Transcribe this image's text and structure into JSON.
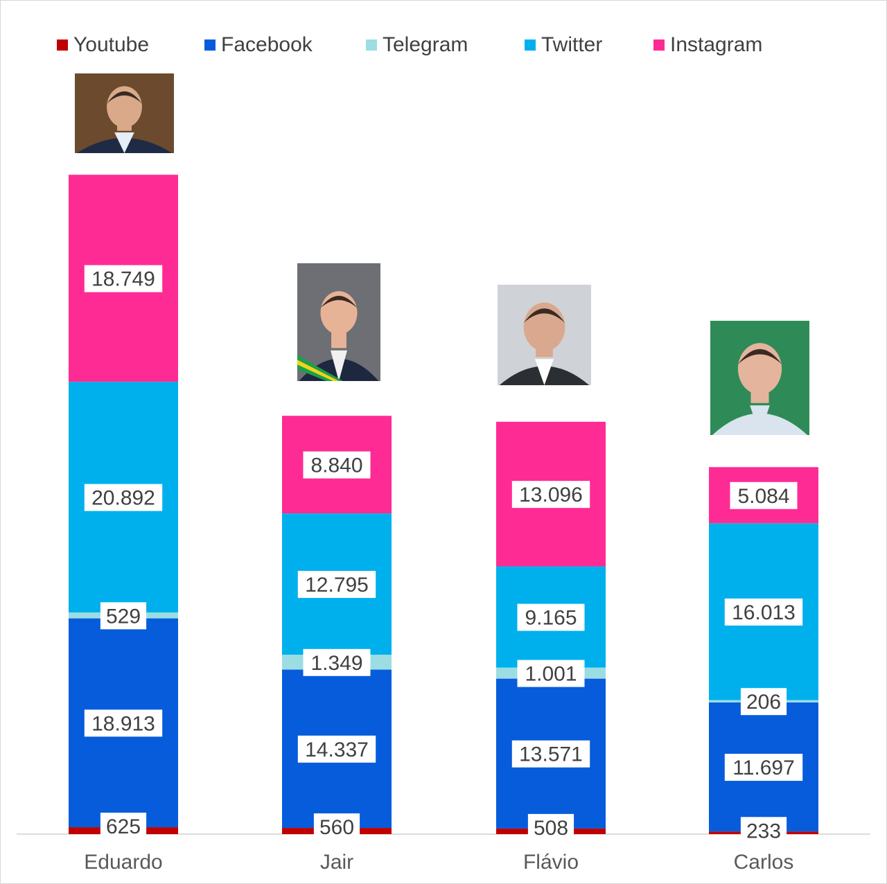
{
  "chart_data": {
    "type": "bar",
    "stacked": true,
    "categories": [
      "Eduardo",
      "Jair",
      "Flávio",
      "Carlos"
    ],
    "series": [
      {
        "name": "Youtube",
        "color": "#c00000",
        "values": [
          625,
          560,
          508,
          233
        ],
        "labels": [
          "625",
          "560",
          "508",
          "233"
        ]
      },
      {
        "name": "Facebook",
        "color": "#075cdc",
        "values": [
          18913,
          14337,
          13571,
          11697
        ],
        "labels": [
          "18.913",
          "14.337",
          "13.571",
          "11.697"
        ]
      },
      {
        "name": "Telegram",
        "color": "#9bdde3",
        "values": [
          529,
          1349,
          1001,
          206
        ],
        "labels": [
          "529",
          "1.349",
          "1.001",
          "206"
        ]
      },
      {
        "name": "Twitter",
        "color": "#00b0ed",
        "values": [
          20892,
          12795,
          9165,
          16013
        ],
        "labels": [
          "20.892",
          "12.795",
          "9.165",
          "16.013"
        ]
      },
      {
        "name": "Instagram",
        "color": "#ff2b94",
        "values": [
          18749,
          8840,
          13096,
          5084
        ],
        "labels": [
          "18.749",
          "8.840",
          "13.096",
          "5.084"
        ]
      }
    ],
    "ylim": [
      0,
      61000
    ],
    "legend_position": "top",
    "grid": false
  },
  "photos": [
    {
      "name": "photo-eduardo",
      "icon": "person-portrait-icon",
      "bg": "#6b4a2e",
      "skin": "#d9a98a",
      "suit": "#1f2a44",
      "shirt": "#e6eef6"
    },
    {
      "name": "photo-jair",
      "icon": "person-portrait-icon",
      "bg": "#6d6f74",
      "skin": "#e7b397",
      "suit": "#1e2740",
      "shirt": "#f1f1f1",
      "sash": "#1aa048"
    },
    {
      "name": "photo-flavio",
      "icon": "person-portrait-icon",
      "bg": "#cfd2d6",
      "skin": "#d9a88f",
      "suit": "#2b2e33",
      "shirt": "#ffffff"
    },
    {
      "name": "photo-carlos",
      "icon": "person-portrait-icon",
      "bg": "#2e8b57",
      "skin": "#e4b49c",
      "suit": "#d9e4ef",
      "shirt": "#d9e4ef"
    }
  ]
}
